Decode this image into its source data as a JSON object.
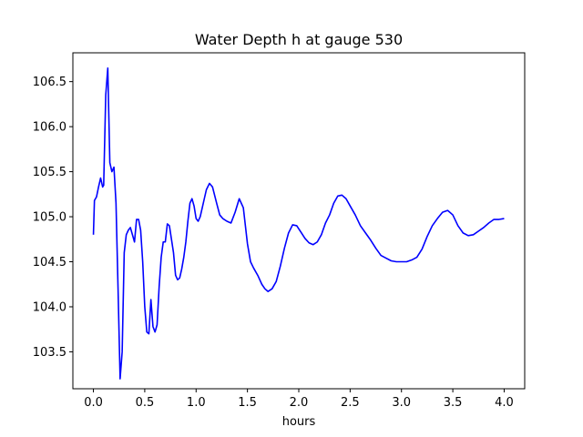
{
  "chart_data": {
    "type": "line",
    "title": "Water Depth h at gauge 530",
    "xlabel": "hours",
    "ylabel": "",
    "xlim": [
      -0.2,
      4.2
    ],
    "ylim": [
      103.09,
      106.82
    ],
    "xticks": [
      0.0,
      0.5,
      1.0,
      1.5,
      2.0,
      2.5,
      3.0,
      3.5,
      4.0
    ],
    "xtick_labels": [
      "0.0",
      "0.5",
      "1.0",
      "1.5",
      "2.0",
      "2.5",
      "3.0",
      "3.5",
      "4.0"
    ],
    "yticks": [
      103.5,
      104.0,
      104.5,
      105.0,
      105.5,
      106.0,
      106.5
    ],
    "ytick_labels": [
      "103.5",
      "104.0",
      "104.5",
      "105.0",
      "105.5",
      "106.0",
      "106.5"
    ],
    "grid": false,
    "series": [
      {
        "color": "#0000ff",
        "x": [
          0.0,
          0.01,
          0.03,
          0.05,
          0.07,
          0.09,
          0.1,
          0.12,
          0.14,
          0.16,
          0.18,
          0.2,
          0.22,
          0.24,
          0.26,
          0.28,
          0.3,
          0.32,
          0.34,
          0.36,
          0.38,
          0.4,
          0.42,
          0.44,
          0.46,
          0.48,
          0.5,
          0.52,
          0.54,
          0.56,
          0.58,
          0.6,
          0.62,
          0.64,
          0.66,
          0.68,
          0.7,
          0.72,
          0.74,
          0.76,
          0.78,
          0.8,
          0.82,
          0.84,
          0.86,
          0.88,
          0.9,
          0.92,
          0.94,
          0.96,
          0.98,
          1.0,
          1.02,
          1.04,
          1.06,
          1.08,
          1.1,
          1.13,
          1.16,
          1.2,
          1.23,
          1.26,
          1.3,
          1.34,
          1.38,
          1.42,
          1.46,
          1.48,
          1.5,
          1.53,
          1.56,
          1.6,
          1.64,
          1.67,
          1.7,
          1.74,
          1.78,
          1.82,
          1.86,
          1.9,
          1.94,
          1.98,
          2.02,
          2.06,
          2.1,
          2.14,
          2.18,
          2.22,
          2.26,
          2.3,
          2.34,
          2.38,
          2.42,
          2.46,
          2.5,
          2.55,
          2.6,
          2.65,
          2.7,
          2.75,
          2.8,
          2.85,
          2.9,
          2.95,
          3.0,
          3.05,
          3.1,
          3.15,
          3.2,
          3.25,
          3.3,
          3.35,
          3.4,
          3.45,
          3.5,
          3.55,
          3.6,
          3.65,
          3.7,
          3.75,
          3.8,
          3.85,
          3.9,
          3.95,
          4.0
        ],
        "y": [
          104.8,
          105.18,
          105.22,
          105.33,
          105.43,
          105.33,
          105.35,
          106.35,
          106.65,
          105.6,
          105.5,
          105.55,
          105.15,
          104.2,
          103.2,
          103.5,
          104.6,
          104.8,
          104.85,
          104.88,
          104.8,
          104.72,
          104.97,
          104.97,
          104.85,
          104.5,
          104.0,
          103.72,
          103.7,
          104.08,
          103.78,
          103.72,
          103.8,
          104.22,
          104.55,
          104.72,
          104.72,
          104.92,
          104.9,
          104.75,
          104.6,
          104.35,
          104.3,
          104.32,
          104.42,
          104.55,
          104.72,
          104.95,
          105.15,
          105.2,
          105.12,
          104.98,
          104.95,
          105.0,
          105.1,
          105.2,
          105.3,
          105.37,
          105.33,
          105.15,
          105.02,
          104.98,
          104.95,
          104.93,
          105.05,
          105.2,
          105.1,
          104.9,
          104.7,
          104.5,
          104.43,
          104.35,
          104.25,
          104.2,
          104.17,
          104.2,
          104.28,
          104.45,
          104.65,
          104.82,
          104.91,
          104.9,
          104.83,
          104.76,
          104.71,
          104.69,
          104.72,
          104.8,
          104.93,
          105.02,
          105.15,
          105.23,
          105.24,
          105.2,
          105.12,
          105.02,
          104.9,
          104.82,
          104.74,
          104.65,
          104.57,
          104.54,
          104.51,
          104.5,
          104.5,
          104.5,
          104.52,
          104.55,
          104.64,
          104.78,
          104.9,
          104.98,
          105.05,
          105.07,
          105.02,
          104.9,
          104.82,
          104.79,
          104.8,
          104.84,
          104.88,
          104.93,
          104.97,
          104.97,
          104.98
        ]
      }
    ]
  }
}
